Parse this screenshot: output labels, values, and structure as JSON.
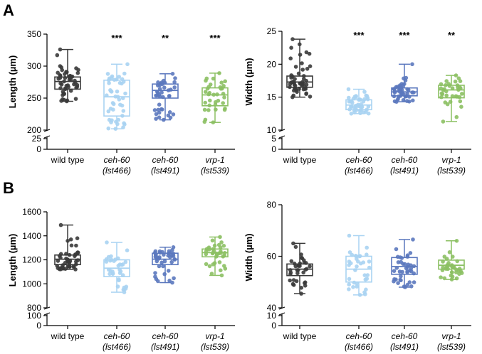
{
  "panel_labels": [
    "A",
    "B"
  ],
  "colors": {
    "wild type": "#3a3a3a",
    "ceh-60 (lst466)": "#a9d3f2",
    "ceh-60 (lst491)": "#5b78be",
    "vrp-1 (lst539)": "#8cc063"
  },
  "categories": [
    {
      "line1": "wild type",
      "line2": "",
      "italic": false
    },
    {
      "line1": "ceh-60",
      "line2": "(lst466)",
      "italic": true
    },
    {
      "line1": "ceh-60",
      "line2": "(lst491)",
      "italic": true
    },
    {
      "line1": "vrp-1",
      "line2": "(lst539)",
      "italic": true
    }
  ],
  "chart_data": [
    {
      "type": "box",
      "panel": "A",
      "ylabel": "Length (µm)",
      "ylim": [
        200,
        350
      ],
      "yticks": [
        200,
        250,
        300,
        350
      ],
      "break_ticks": [
        0,
        25
      ],
      "significance": [
        "",
        "***",
        "**",
        "***"
      ],
      "series": [
        {
          "name": "wild type",
          "min": 245,
          "q1": 264,
          "median": 276,
          "q3": 283,
          "max": 326,
          "n": 50
        },
        {
          "name": "ceh-60 (lst466)",
          "min": 202,
          "q1": 222,
          "median": 252,
          "q3": 278,
          "max": 303,
          "n": 45
        },
        {
          "name": "ceh-60 (lst491)",
          "min": 216,
          "q1": 250,
          "median": 262,
          "q3": 272,
          "max": 288,
          "n": 40
        },
        {
          "name": "vrp-1 (lst539)",
          "min": 212,
          "q1": 238,
          "median": 255,
          "q3": 266,
          "max": 289,
          "n": 35
        }
      ]
    },
    {
      "type": "box",
      "panel": "A",
      "ylabel": "Width (µm)",
      "ylim": [
        10,
        25
      ],
      "yticks": [
        10,
        15,
        20,
        25
      ],
      "break_ticks": [
        0,
        5
      ],
      "significance": [
        "",
        "***",
        "***",
        "**"
      ],
      "series": [
        {
          "name": "wild type",
          "min": 15,
          "q1": 16.5,
          "median": 17.3,
          "q3": 18.2,
          "max": 23.8,
          "n": 50
        },
        {
          "name": "ceh-60 (lst466)",
          "min": 12.5,
          "q1": 13.1,
          "median": 13.8,
          "q3": 14.6,
          "max": 16.2,
          "n": 45
        },
        {
          "name": "ceh-60 (lst491)",
          "min": 14.3,
          "q1": 15.2,
          "median": 15.8,
          "q3": 16.4,
          "max": 20,
          "n": 45
        },
        {
          "name": "vrp-1 (lst539)",
          "min": 11.3,
          "q1": 14.9,
          "median": 16.1,
          "q3": 16.8,
          "max": 18.3,
          "n": 35
        }
      ]
    },
    {
      "type": "box",
      "panel": "B",
      "ylabel": "Length (µm)",
      "ylim": [
        800,
        1600
      ],
      "yticks": [
        800,
        1000,
        1200,
        1400,
        1600
      ],
      "break_ticks": [
        0,
        100
      ],
      "significance": [
        "",
        "",
        "",
        ""
      ],
      "series": [
        {
          "name": "wild type",
          "min": 1120,
          "q1": 1160,
          "median": 1205,
          "q3": 1240,
          "max": 1490,
          "n": 45
        },
        {
          "name": "ceh-60 (lst466)",
          "min": 930,
          "q1": 1060,
          "median": 1130,
          "q3": 1200,
          "max": 1345,
          "n": 35
        },
        {
          "name": "ceh-60 (lst491)",
          "min": 1010,
          "q1": 1160,
          "median": 1205,
          "q3": 1255,
          "max": 1305,
          "n": 40
        },
        {
          "name": "vrp-1 (lst539)",
          "min": 1070,
          "q1": 1225,
          "median": 1260,
          "q3": 1290,
          "max": 1390,
          "n": 35
        }
      ]
    },
    {
      "type": "box",
      "panel": "B",
      "ylabel": "Width (µm)",
      "ylim": [
        40,
        80
      ],
      "yticks": [
        40,
        60,
        80
      ],
      "break_ticks": [
        0,
        10
      ],
      "significance": [
        "",
        "",
        "",
        ""
      ],
      "series": [
        {
          "name": "wild type",
          "min": 45.5,
          "q1": 52.5,
          "median": 55,
          "q3": 57,
          "max": 65,
          "n": 35
        },
        {
          "name": "ceh-60 (lst466)",
          "min": 45,
          "q1": 50,
          "median": 55,
          "q3": 60,
          "max": 68,
          "n": 35
        },
        {
          "name": "ceh-60 (lst491)",
          "min": 48,
          "q1": 53,
          "median": 56,
          "q3": 59.5,
          "max": 66.5,
          "n": 40
        },
        {
          "name": "vrp-1 (lst539)",
          "min": 51,
          "q1": 55,
          "median": 56.5,
          "q3": 58.5,
          "max": 66,
          "n": 35
        }
      ]
    }
  ]
}
